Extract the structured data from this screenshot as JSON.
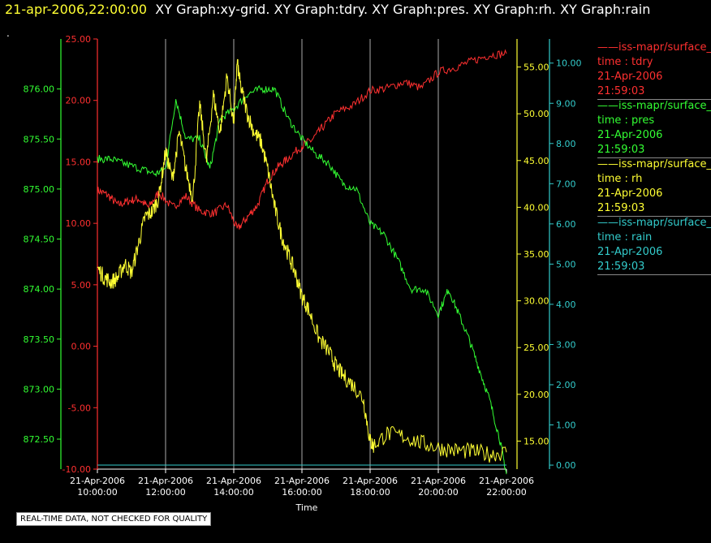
{
  "header": {
    "timestamp": "21-apr-2006,22:00:00",
    "graphs": "XY Graph:xy-grid.  XY Graph:tdry.  XY Graph:pres.  XY Graph:rh.  XY Graph:rain"
  },
  "dot_text": ".",
  "disclaimer": "REAL-TIME DATA, NOT CHECKED FOR QUALITY",
  "legend": [
    {
      "line": "——iss-mapr/surface_m",
      "var": "time : tdry",
      "date": "21-Apr-2006",
      "time": "21:59:03",
      "color": "#ff3030"
    },
    {
      "line": "——iss-mapr/surface_m",
      "var": "time : pres",
      "date": "21-Apr-2006",
      "time": "21:59:03",
      "color": "#33ff33"
    },
    {
      "line": "——iss-mapr/surface_m",
      "var": "time : rh",
      "date": "21-Apr-2006",
      "time": "21:59:03",
      "color": "#ffff33"
    },
    {
      "line": "——iss-mapr/surface_m",
      "var": "time : rain",
      "date": "21-Apr-2006",
      "time": "21:59:03",
      "color": "#33cccc"
    }
  ],
  "chart_data": {
    "type": "line",
    "xlabel": "Time",
    "x_ticks": [
      {
        "date": "21-Apr-2006",
        "time": "10:00:00",
        "hour": 10
      },
      {
        "date": "21-Apr-2006",
        "time": "12:00:00",
        "hour": 12
      },
      {
        "date": "21-Apr-2006",
        "time": "14:00:00",
        "hour": 14
      },
      {
        "date": "21-Apr-2006",
        "time": "16:00:00",
        "hour": 16
      },
      {
        "date": "21-Apr-2006",
        "time": "18:00:00",
        "hour": 18
      },
      {
        "date": "21-Apr-2006",
        "time": "20:00:00",
        "hour": 20
      },
      {
        "date": "21-Apr-2006",
        "time": "22:00:00",
        "hour": 22
      }
    ],
    "xlim": [
      10,
      22
    ],
    "vertical_grid": true,
    "axes": {
      "pres": {
        "color": "#33ff33",
        "ticks": [
          "872.50",
          "873.00",
          "873.50",
          "874.00",
          "874.50",
          "875.00",
          "875.50",
          "876.00"
        ],
        "ylim": [
          872.2,
          876.5
        ]
      },
      "tdry": {
        "color": "#ff3030",
        "ticks": [
          "-10.00",
          "-5.00",
          "0.00",
          "5.00",
          "10.00",
          "15.00",
          "20.00",
          "25.00"
        ],
        "ylim": [
          -10,
          25
        ]
      },
      "rh": {
        "color": "#ffff33",
        "ticks": [
          "15.00",
          "20.00",
          "25.00",
          "30.00",
          "35.00",
          "40.00",
          "45.00",
          "50.00",
          "55.00"
        ],
        "ylim": [
          12,
          58
        ]
      },
      "rain": {
        "color": "#33cccc",
        "ticks": [
          "0.00",
          "1.00",
          "2.00",
          "3.00",
          "4.00",
          "5.00",
          "6.00",
          "7.00",
          "8.00",
          "9.00",
          "10.00"
        ],
        "ylim": [
          -0.1,
          10.6
        ]
      }
    },
    "series": [
      {
        "var": "tdry",
        "color": "#ff3030",
        "x": [
          10,
          10.3,
          10.6,
          10.9,
          11.2,
          11.5,
          11.8,
          12.2,
          12.6,
          13,
          13.4,
          13.8,
          14.1,
          14.4,
          14.7,
          15,
          15.3,
          15.6,
          16,
          16.3,
          16.6,
          17,
          17.5,
          18,
          18.5,
          19,
          19.5,
          20,
          20.5,
          21,
          21.5,
          22
        ],
        "y": [
          12.7,
          12.3,
          11.5,
          11.8,
          12.0,
          11.3,
          12.5,
          11.3,
          12.2,
          11.0,
          10.8,
          11.5,
          9.5,
          10.5,
          11.5,
          13.5,
          14.6,
          15.3,
          16.3,
          16.8,
          17.8,
          19.0,
          19.6,
          20.8,
          21.0,
          21.5,
          21.0,
          22.3,
          22.7,
          23.2,
          23.7,
          23.8
        ],
        "noise": 0.35
      },
      {
        "var": "pres",
        "color": "#33ff33",
        "x": [
          10,
          10.4,
          10.8,
          11.3,
          11.7,
          12,
          12.3,
          12.6,
          13,
          13.3,
          13.6,
          14,
          14.4,
          14.8,
          15.2,
          15.6,
          16,
          16.4,
          16.8,
          17.2,
          17.6,
          18,
          18.4,
          18.8,
          19.2,
          19.6,
          20,
          20.3,
          20.6,
          20.9,
          21.2,
          21.5,
          21.8,
          22
        ],
        "y": [
          875.3,
          875.3,
          875.25,
          875.2,
          875.15,
          875.2,
          875.9,
          875.5,
          875.5,
          875.2,
          875.7,
          875.8,
          875.95,
          876.0,
          876.0,
          875.7,
          875.5,
          875.35,
          875.25,
          875.05,
          875.0,
          874.65,
          874.55,
          874.3,
          874.0,
          874.0,
          873.75,
          874.0,
          873.75,
          873.5,
          873.2,
          872.9,
          872.5,
          872.15
        ],
        "noise": 0.04
      },
      {
        "var": "rh",
        "color": "#ffff33",
        "x": [
          10,
          10.2,
          10.4,
          10.6,
          10.8,
          11,
          11.2,
          11.4,
          11.6,
          11.8,
          12,
          12.2,
          12.4,
          12.6,
          12.8,
          13,
          13.2,
          13.4,
          13.6,
          13.8,
          14,
          14.1,
          14.2,
          14.4,
          14.6,
          14.8,
          15,
          15.2,
          15.4,
          15.6,
          15.8,
          16,
          16.2,
          16.5,
          16.8,
          17,
          17.2,
          17.5,
          17.8,
          18,
          18.1,
          18.5,
          19,
          19.5,
          20,
          20.5,
          21,
          21.5,
          22
        ],
        "y": [
          33.5,
          32.5,
          32.0,
          32.5,
          34.0,
          33.0,
          36.0,
          39.0,
          39.5,
          41.0,
          46.0,
          43.0,
          48.0,
          44.0,
          41.0,
          51.0,
          45.0,
          52.0,
          48.0,
          54.0,
          49.0,
          55.5,
          53.0,
          50.0,
          48.0,
          47.0,
          44.0,
          40.0,
          37.0,
          35.0,
          33.0,
          30.5,
          29.0,
          26.0,
          24.5,
          23.0,
          22.0,
          21.0,
          19.5,
          15.0,
          14.5,
          15.8,
          15.5,
          14.8,
          14.3,
          14.0,
          13.9,
          13.6,
          13.8
        ],
        "noise": 0.9
      },
      {
        "var": "rain",
        "color": "#33cccc",
        "x": [
          10,
          22
        ],
        "y": [
          0,
          0
        ],
        "noise": 0
      }
    ]
  }
}
